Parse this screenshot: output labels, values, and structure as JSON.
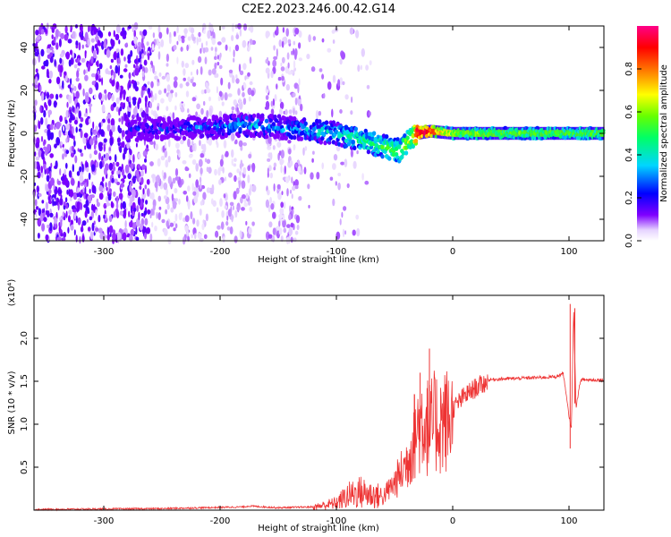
{
  "title": "C2E2.2023.246.00.42.G14",
  "chart_data": [
    {
      "type": "heatmap",
      "xlabel": "Height of straight line (km)",
      "ylabel": "Frequency (Hz)",
      "xlim": [
        -360,
        130
      ],
      "ylim": [
        -50,
        50
      ],
      "xticks": [
        -300,
        -200,
        -100,
        0,
        100
      ],
      "yticks": [
        -40,
        -20,
        0,
        20,
        40
      ],
      "colorbar": {
        "label": "Normalized spectral amplitude",
        "range": [
          0.0,
          1.0
        ],
        "ticks": [
          0.0,
          0.2,
          0.4,
          0.6,
          0.8
        ],
        "colormap": "rainbow (white-purple-blue-cyan-green-yellow-orange-red-magenta)"
      },
      "center_track": {
        "x": [
          -280,
          -250,
          -200,
          -180,
          -150,
          -120,
          -100,
          -80,
          -60,
          -45,
          -35,
          -30,
          -20,
          0,
          50,
          100,
          130
        ],
        "y": [
          2,
          2,
          3,
          4,
          3,
          1,
          0,
          -3,
          -6,
          -8,
          -2,
          0,
          1,
          0,
          0,
          0,
          0
        ],
        "amplitude": [
          0.2,
          0.2,
          0.28,
          0.35,
          0.3,
          0.35,
          0.4,
          0.45,
          0.5,
          0.55,
          0.65,
          0.95,
          0.9,
          0.6,
          0.55,
          0.55,
          0.55
        ]
      },
      "grid": false
    },
    {
      "type": "line",
      "xlabel": "Height of straight line (km)",
      "ylabel": "SNR (10 * v/v)",
      "y_multiplier": "(x10⁴)",
      "xlim": [
        -360,
        130
      ],
      "ylim": [
        0,
        2.5
      ],
      "xticks": [
        -300,
        -200,
        -100,
        0,
        100
      ],
      "yticks": [
        0.5,
        1.0,
        1.5,
        2.0
      ],
      "series": [
        {
          "color": "#ee3333",
          "x": [
            -360,
            -250,
            -180,
            -175,
            -150,
            -120,
            -100,
            -90,
            -80,
            -60,
            -50,
            -40,
            -35,
            -30,
            -25,
            -20,
            -15,
            -10,
            0,
            10,
            20,
            30,
            40,
            60,
            80,
            90,
            95,
            100,
            102,
            104,
            106,
            110,
            130
          ],
          "y": [
            0.01,
            0.02,
            0.04,
            0.05,
            0.03,
            0.04,
            0.1,
            0.2,
            0.25,
            0.18,
            0.35,
            0.6,
            0.85,
            1.1,
            1.2,
            1.05,
            1.15,
            1.15,
            1.2,
            1.35,
            1.45,
            1.52,
            1.53,
            1.54,
            1.55,
            1.56,
            1.6,
            1.1,
            0.95,
            2.35,
            1.2,
            1.52,
            1.52
          ],
          "spikes": [
            [
              -20,
              1.88
            ],
            [
              101,
              2.4
            ],
            [
              105,
              2.35
            ],
            [
              -28,
              1.6
            ],
            [
              -33,
              1.35
            ],
            [
              -22,
              1.42
            ]
          ]
        }
      ],
      "grid": false
    }
  ]
}
